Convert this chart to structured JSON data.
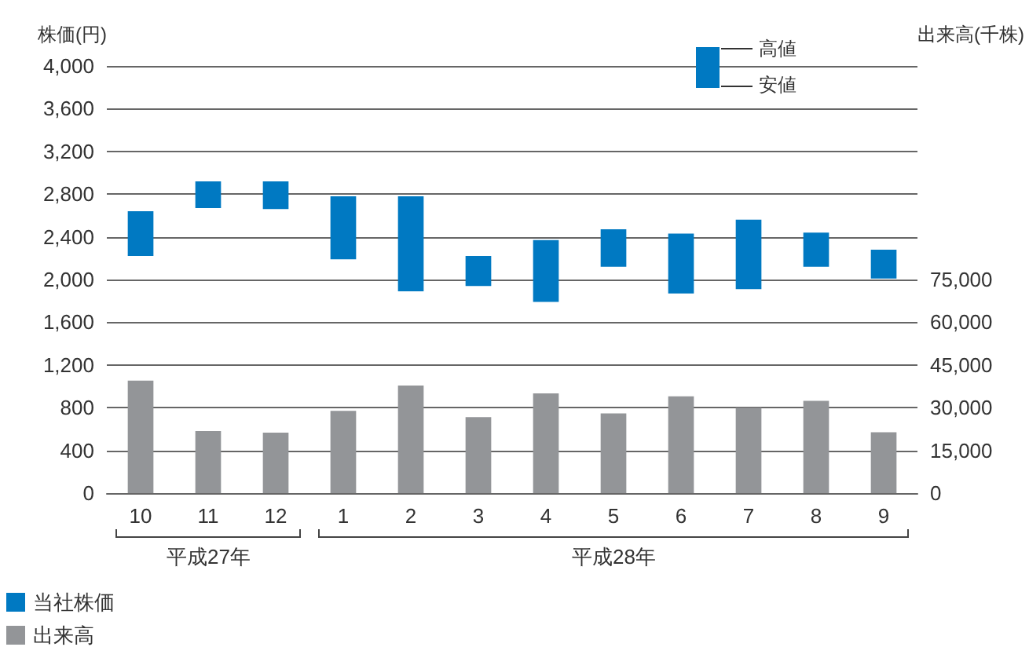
{
  "chart_data": {
    "type": "bar",
    "ylabel": "株価(円)",
    "y2label": "出来高(千株)",
    "categories": [
      "10",
      "11",
      "12",
      "1",
      "2",
      "3",
      "4",
      "5",
      "6",
      "7",
      "8",
      "9"
    ],
    "series": [
      {
        "name": "当社株価",
        "color": "#0079c2",
        "base": [
          2220,
          2670,
          2660,
          2190,
          1890,
          1940,
          1790,
          2120,
          1870,
          1910,
          2120,
          2010
        ],
        "values": [
          420,
          250,
          260,
          590,
          890,
          280,
          580,
          350,
          560,
          650,
          320,
          270
        ]
      },
      {
        "name": "出来高",
        "color": "#939598",
        "axis": "y2",
        "values": [
          39500,
          21800,
          21200,
          28900,
          37800,
          26700,
          35000,
          28000,
          34000,
          30000,
          32400,
          21400
        ]
      }
    ],
    "ylim": [
      0,
      4000
    ],
    "yticks": [
      0,
      400,
      800,
      {
        "value": 1200,
        "label": "1,200"
      },
      {
        "value": 1600,
        "label": "1,600"
      },
      {
        "value": 2000,
        "label": "2,000"
      },
      {
        "value": 2400,
        "label": "2,400"
      },
      {
        "value": 2800,
        "label": "2,800"
      },
      {
        "value": 3200,
        "label": "3,200"
      },
      {
        "value": 3600,
        "label": "3,600"
      },
      {
        "value": 4000,
        "label": "4,000"
      }
    ],
    "y2lim": [
      0,
      150000
    ],
    "y2ticks": [
      0,
      {
        "value": 15000,
        "label": "15,000"
      },
      {
        "value": 30000,
        "label": "30,000"
      },
      {
        "value": 45000,
        "label": "45,000"
      },
      {
        "value": 60000,
        "label": "60,000"
      },
      {
        "value": 75000,
        "label": "75,000"
      }
    ],
    "annotations": [
      "高値",
      "安値",
      "平成27年",
      "平成28年"
    ],
    "grid": "y",
    "legend": "bottom left"
  }
}
